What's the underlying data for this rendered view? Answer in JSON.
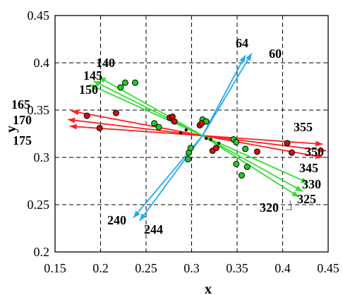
{
  "chart_data": {
    "type": "scatter",
    "title": "",
    "xlabel": "x",
    "ylabel": "y",
    "xlim": [
      0.15,
      0.45
    ],
    "ylim": [
      0.2,
      0.45
    ],
    "x_ticks": [
      "0.15",
      "0.2",
      "0.25",
      "0.3",
      "0.35",
      "0.4",
      "0.45"
    ],
    "y_ticks": [
      "0.2",
      "0.25",
      "0.3",
      "0.35",
      "0.4",
      "0.45"
    ],
    "grid": "dashed",
    "colors": {
      "red": "#ff2020",
      "green": "#33dd33",
      "blue": "#22aaee",
      "red_marker": "#cc1111",
      "green_marker": "#22cc22"
    },
    "center": [
      0.312,
      0.323
    ],
    "green_points": [
      [
        0.222,
        0.374
      ],
      [
        0.227,
        0.379
      ],
      [
        0.238,
        0.379
      ],
      [
        0.259,
        0.336
      ],
      [
        0.264,
        0.332
      ],
      [
        0.296,
        0.298
      ],
      [
        0.297,
        0.305
      ],
      [
        0.299,
        0.31
      ],
      [
        0.312,
        0.34
      ],
      [
        0.316,
        0.338
      ],
      [
        0.346,
        0.319
      ],
      [
        0.349,
        0.316
      ],
      [
        0.349,
        0.293
      ],
      [
        0.355,
        0.281
      ],
      [
        0.359,
        0.309
      ],
      [
        0.361,
        0.29
      ]
    ],
    "red_points": [
      [
        0.185,
        0.344
      ],
      [
        0.199,
        0.331
      ],
      [
        0.217,
        0.347
      ],
      [
        0.276,
        0.342
      ],
      [
        0.279,
        0.343
      ],
      [
        0.281,
        0.338
      ],
      [
        0.309,
        0.334
      ],
      [
        0.311,
        0.336
      ],
      [
        0.323,
        0.307
      ],
      [
        0.327,
        0.31
      ],
      [
        0.372,
        0.306
      ],
      [
        0.405,
        0.315
      ],
      [
        0.41,
        0.305
      ]
    ],
    "black_points": [
      [
        0.288,
        0.326
      ],
      [
        0.294,
        0.329
      ],
      [
        0.316,
        0.32
      ],
      [
        0.321,
        0.319
      ],
      [
        0.33,
        0.315
      ]
    ],
    "red_lines": [
      {
        "label": "165",
        "end": [
          0.168,
          0.349
        ]
      },
      {
        "label": "170",
        "end": [
          0.164,
          0.34
        ]
      },
      {
        "label": "175",
        "end": [
          0.166,
          0.333
        ]
      },
      {
        "label": "355",
        "end": [
          0.444,
          0.314
        ]
      },
      {
        "label": "350",
        "end": [
          0.448,
          0.307
        ]
      },
      {
        "label": "345",
        "end": [
          0.444,
          0.3
        ]
      }
    ],
    "green_lines": [
      {
        "label": "140",
        "end": [
          0.198,
          0.385
        ]
      },
      {
        "label": "145",
        "end": [
          0.192,
          0.381
        ]
      },
      {
        "label": "150",
        "end": [
          0.188,
          0.377
        ]
      },
      {
        "label": "330",
        "end": [
          0.428,
          0.273
        ]
      },
      {
        "label": "325",
        "end": [
          0.422,
          0.264
        ]
      },
      {
        "label": "320",
        "end": [
          0.418,
          0.258
        ]
      }
    ],
    "blue_lines": [
      {
        "label": "64",
        "end": [
          0.359,
          0.408
        ]
      },
      {
        "label": "60",
        "end": [
          0.366,
          0.41
        ]
      },
      {
        "label": "240",
        "end": [
          0.236,
          0.236
        ]
      },
      {
        "label": "244",
        "end": [
          0.243,
          0.233
        ]
      }
    ]
  }
}
